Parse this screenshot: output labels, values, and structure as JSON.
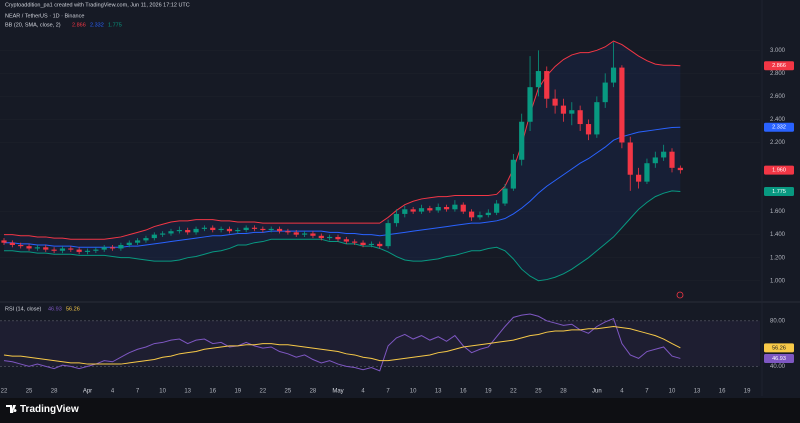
{
  "header": {
    "author_line": "Cryptoaddition_pa1 created with TradingView.com, Jun 11, 2026 17:12 UTC"
  },
  "brand": "TradingView",
  "chart_data": [
    {
      "type": "candlestick",
      "title": "NEAR / TetherUS · 1D · Binance",
      "indicator": "BB (20, SMA, close, 2)",
      "up_color": "#089981",
      "down_color": "#f23645",
      "categories": [
        "22",
        null,
        null,
        "25",
        null,
        null,
        "28",
        null,
        null,
        null,
        "Apr",
        null,
        null,
        "4",
        null,
        null,
        "7",
        null,
        null,
        "10",
        null,
        null,
        "13",
        null,
        null,
        "16",
        null,
        null,
        "19",
        null,
        null,
        "22",
        null,
        null,
        "25",
        null,
        null,
        "28",
        null,
        null,
        "May",
        null,
        null,
        "4",
        null,
        null,
        "7",
        null,
        null,
        "10",
        null,
        null,
        "13",
        null,
        null,
        "16",
        null,
        null,
        "19",
        null,
        null,
        "22",
        null,
        null,
        "25",
        null,
        null,
        "28",
        null,
        null,
        null,
        "Jun",
        null,
        null,
        "4",
        null,
        null,
        "7",
        null,
        null,
        "10",
        null,
        null,
        "13",
        null,
        null,
        "16",
        null,
        null,
        "19",
        null,
        null
      ],
      "candles": {
        "open": [
          1.35,
          1.33,
          1.31,
          1.3,
          1.28,
          1.29,
          1.27,
          1.26,
          1.28,
          1.27,
          1.25,
          1.26,
          1.27,
          1.29,
          1.28,
          1.31,
          1.33,
          1.35,
          1.37,
          1.4,
          1.41,
          1.43,
          1.44,
          1.42,
          1.45,
          1.46,
          1.44,
          1.45,
          1.43,
          1.44,
          1.46,
          1.45,
          1.44,
          1.45,
          1.43,
          1.42,
          1.4,
          1.41,
          1.39,
          1.37,
          1.38,
          1.36,
          1.34,
          1.33,
          1.31,
          1.32,
          1.3,
          1.5,
          1.58,
          1.62,
          1.6,
          1.63,
          1.61,
          1.64,
          1.62,
          1.66,
          1.6,
          1.55,
          1.57,
          1.59,
          1.67,
          1.8,
          2.05,
          2.38,
          2.68,
          2.82,
          2.58,
          2.52,
          2.45,
          2.48,
          2.36,
          2.27,
          2.55,
          2.72,
          2.85,
          2.2,
          1.92,
          1.86,
          2.02,
          2.07,
          2.12,
          1.98,
          null,
          null,
          null,
          null,
          null,
          null,
          null,
          null,
          null,
          null
        ],
        "high": [
          1.37,
          1.35,
          1.33,
          1.32,
          1.31,
          1.31,
          1.29,
          1.3,
          1.3,
          1.29,
          1.28,
          1.29,
          1.31,
          1.31,
          1.33,
          1.35,
          1.37,
          1.39,
          1.42,
          1.43,
          1.45,
          1.47,
          1.46,
          1.47,
          1.48,
          1.48,
          1.47,
          1.47,
          1.46,
          1.48,
          1.48,
          1.47,
          1.47,
          1.47,
          1.45,
          1.44,
          1.43,
          1.43,
          1.41,
          1.4,
          1.4,
          1.38,
          1.36,
          1.35,
          1.34,
          1.34,
          1.53,
          1.62,
          1.65,
          1.64,
          1.66,
          1.65,
          1.67,
          1.66,
          1.7,
          1.68,
          1.62,
          1.6,
          1.62,
          1.7,
          1.84,
          2.1,
          2.45,
          2.95,
          3.0,
          2.86,
          2.66,
          2.58,
          2.55,
          2.52,
          2.4,
          2.6,
          2.8,
          3.07,
          2.87,
          2.25,
          1.98,
          2.06,
          2.12,
          2.18,
          2.15,
          2.0,
          null,
          null,
          null,
          null,
          null,
          null,
          null,
          null,
          null,
          null
        ],
        "low": [
          1.31,
          1.29,
          1.28,
          1.26,
          1.26,
          1.25,
          1.24,
          1.24,
          1.25,
          1.23,
          1.23,
          1.24,
          1.25,
          1.26,
          1.26,
          1.29,
          1.31,
          1.33,
          1.35,
          1.38,
          1.39,
          1.41,
          1.4,
          1.4,
          1.43,
          1.42,
          1.42,
          1.41,
          1.41,
          1.42,
          1.43,
          1.42,
          1.42,
          1.41,
          1.4,
          1.38,
          1.38,
          1.37,
          1.35,
          1.35,
          1.34,
          1.32,
          1.31,
          1.29,
          1.29,
          1.28,
          1.28,
          1.47,
          1.55,
          1.58,
          1.58,
          1.59,
          1.59,
          1.6,
          1.6,
          1.58,
          1.52,
          1.53,
          1.55,
          1.57,
          1.65,
          1.78,
          2.0,
          2.3,
          2.6,
          2.5,
          2.45,
          2.38,
          2.35,
          2.3,
          2.22,
          2.24,
          2.5,
          2.68,
          2.15,
          1.78,
          1.8,
          1.84,
          1.98,
          2.04,
          1.94,
          1.93,
          null,
          null,
          null,
          null,
          null,
          null,
          null,
          null,
          null,
          null
        ],
        "close": [
          1.33,
          1.31,
          1.3,
          1.28,
          1.29,
          1.27,
          1.26,
          1.28,
          1.27,
          1.25,
          1.26,
          1.27,
          1.29,
          1.28,
          1.31,
          1.33,
          1.35,
          1.37,
          1.4,
          1.41,
          1.43,
          1.44,
          1.42,
          1.45,
          1.46,
          1.44,
          1.45,
          1.43,
          1.44,
          1.46,
          1.45,
          1.44,
          1.45,
          1.43,
          1.42,
          1.4,
          1.41,
          1.39,
          1.37,
          1.38,
          1.36,
          1.34,
          1.33,
          1.31,
          1.32,
          1.3,
          1.5,
          1.58,
          1.62,
          1.6,
          1.63,
          1.61,
          1.64,
          1.62,
          1.66,
          1.6,
          1.55,
          1.57,
          1.59,
          1.67,
          1.8,
          2.05,
          2.38,
          2.68,
          2.82,
          2.58,
          2.52,
          2.45,
          2.48,
          2.36,
          2.27,
          2.55,
          2.72,
          2.85,
          2.2,
          1.92,
          1.86,
          2.02,
          2.07,
          2.12,
          1.98,
          1.96,
          null,
          null,
          null,
          null,
          null,
          null,
          null,
          null,
          null,
          null
        ],
        "value_labels": [
          null,
          null,
          null,
          null,
          null,
          null,
          null,
          null,
          null,
          null,
          null,
          null,
          null,
          null,
          null,
          null,
          null,
          null,
          null,
          null,
          null,
          null,
          null,
          null,
          null,
          null,
          null,
          null,
          null,
          null,
          null,
          null,
          null,
          null,
          null,
          null,
          null,
          null,
          null,
          null,
          null,
          null,
          null,
          null,
          null,
          null,
          null,
          null,
          null,
          null,
          null,
          null,
          null,
          null,
          null,
          null,
          null,
          null,
          null,
          null,
          null,
          null,
          null,
          null,
          null,
          null,
          null,
          null,
          null,
          null,
          null,
          null,
          null,
          null,
          null,
          null,
          null,
          null,
          null,
          null,
          null,
          "1.960",
          null,
          null,
          null,
          null,
          null,
          null,
          null,
          null,
          null,
          null
        ]
      },
      "series": [
        {
          "color": "#f23645",
          "values": [
            1.4,
            1.4,
            1.39,
            1.39,
            1.38,
            1.38,
            1.37,
            1.37,
            1.36,
            1.36,
            1.36,
            1.36,
            1.36,
            1.37,
            1.38,
            1.4,
            1.42,
            1.44,
            1.47,
            1.49,
            1.51,
            1.52,
            1.52,
            1.53,
            1.53,
            1.53,
            1.52,
            1.52,
            1.51,
            1.51,
            1.51,
            1.5,
            1.5,
            1.5,
            1.5,
            1.5,
            1.5,
            1.5,
            1.5,
            1.5,
            1.5,
            1.5,
            1.5,
            1.5,
            1.5,
            1.5,
            1.55,
            1.61,
            1.66,
            1.69,
            1.71,
            1.72,
            1.73,
            1.73,
            1.74,
            1.74,
            1.74,
            1.74,
            1.74,
            1.75,
            1.82,
            1.97,
            2.18,
            2.45,
            2.67,
            2.78,
            2.86,
            2.92,
            2.96,
            2.98,
            2.98,
            3.0,
            3.03,
            3.08,
            3.05,
            3.0,
            2.95,
            2.91,
            2.88,
            2.87,
            2.87,
            2.866,
            null,
            null,
            null,
            null,
            null,
            null,
            null,
            null,
            null,
            null
          ]
        },
        {
          "color": "#2962ff",
          "values": [
            1.33,
            1.33,
            1.32,
            1.32,
            1.31,
            1.31,
            1.3,
            1.3,
            1.3,
            1.29,
            1.29,
            1.29,
            1.29,
            1.29,
            1.29,
            1.3,
            1.3,
            1.31,
            1.32,
            1.33,
            1.34,
            1.35,
            1.36,
            1.37,
            1.38,
            1.39,
            1.39,
            1.4,
            1.41,
            1.41,
            1.42,
            1.42,
            1.43,
            1.43,
            1.43,
            1.43,
            1.43,
            1.43,
            1.43,
            1.42,
            1.42,
            1.41,
            1.41,
            1.4,
            1.4,
            1.39,
            1.4,
            1.41,
            1.42,
            1.43,
            1.44,
            1.45,
            1.46,
            1.47,
            1.48,
            1.49,
            1.5,
            1.5,
            1.51,
            1.52,
            1.54,
            1.58,
            1.63,
            1.69,
            1.76,
            1.82,
            1.87,
            1.92,
            1.97,
            2.02,
            2.06,
            2.11,
            2.16,
            2.22,
            2.25,
            2.27,
            2.29,
            2.3,
            2.31,
            2.32,
            2.33,
            2.332,
            null,
            null,
            null,
            null,
            null,
            null,
            null,
            null,
            null,
            null
          ]
        },
        {
          "color": "#089981",
          "values": [
            1.26,
            1.26,
            1.25,
            1.25,
            1.24,
            1.24,
            1.23,
            1.23,
            1.23,
            1.22,
            1.22,
            1.22,
            1.22,
            1.21,
            1.2,
            1.2,
            1.19,
            1.18,
            1.17,
            1.17,
            1.17,
            1.18,
            1.2,
            1.21,
            1.23,
            1.25,
            1.26,
            1.28,
            1.31,
            1.31,
            1.33,
            1.34,
            1.36,
            1.36,
            1.36,
            1.36,
            1.36,
            1.36,
            1.36,
            1.34,
            1.34,
            1.32,
            1.32,
            1.3,
            1.3,
            1.28,
            1.25,
            1.21,
            1.18,
            1.17,
            1.17,
            1.18,
            1.19,
            1.21,
            1.22,
            1.24,
            1.26,
            1.26,
            1.28,
            1.29,
            1.26,
            1.19,
            1.1,
            1.04,
            1.0,
            1.01,
            1.03,
            1.06,
            1.1,
            1.15,
            1.2,
            1.26,
            1.32,
            1.38,
            1.46,
            1.54,
            1.62,
            1.68,
            1.73,
            1.76,
            1.78,
            1.775,
            null,
            null,
            null,
            null,
            null,
            null,
            null,
            null,
            null,
            null
          ]
        }
      ],
      "ylim": [
        0.85,
        3.35
      ],
      "yticks": [
        {
          "value": 1,
          "label": "1.000"
        },
        {
          "value": 1.2,
          "label": "1.200"
        },
        {
          "value": 1.4,
          "label": "1.400"
        },
        {
          "value": 1.6,
          "label": "1.600"
        },
        {
          "value": 2.2,
          "label": "2.200"
        },
        {
          "value": 2.4,
          "label": "2.400"
        },
        {
          "value": 2.6,
          "label": "2.600"
        },
        {
          "value": 2.8,
          "label": "2.800"
        },
        {
          "value": 3,
          "label": "3.000"
        }
      ]
    },
    {
      "type": "line",
      "title": "RSI (14, close)",
      "series": [
        {
          "color": "#7e57c2",
          "values": [
            45,
            44,
            42,
            40,
            42,
            40,
            38,
            41,
            40,
            38,
            40,
            42,
            45,
            44,
            48,
            52,
            55,
            57,
            60,
            61,
            63,
            64,
            60,
            63,
            64,
            60,
            61,
            57,
            58,
            61,
            58,
            56,
            57,
            53,
            51,
            48,
            50,
            46,
            43,
            45,
            42,
            40,
            39,
            37,
            39,
            36,
            58,
            65,
            68,
            64,
            67,
            63,
            66,
            62,
            67,
            58,
            52,
            55,
            57,
            66,
            75,
            83,
            85,
            86,
            84,
            80,
            78,
            76,
            77,
            72,
            69,
            75,
            79,
            82,
            60,
            50,
            47,
            53,
            55,
            57,
            49,
            46.93,
            null,
            null,
            null,
            null,
            null,
            null,
            null,
            null,
            null,
            null
          ]
        },
        {
          "color": "#f7c948",
          "values": [
            50,
            49,
            49,
            48,
            47,
            46,
            45,
            44,
            43,
            43,
            42,
            42,
            42,
            42,
            42,
            43,
            44,
            45,
            46,
            48,
            49,
            51,
            52,
            53,
            55,
            56,
            57,
            58,
            58,
            59,
            59,
            60,
            60,
            59,
            59,
            58,
            57,
            56,
            55,
            54,
            53,
            51,
            50,
            48,
            47,
            45,
            45,
            46,
            47,
            48,
            49,
            50,
            52,
            53,
            55,
            57,
            58,
            59,
            60,
            61,
            62,
            63,
            65,
            67,
            68,
            70,
            71,
            71,
            72,
            72,
            73,
            73,
            74,
            75,
            74,
            73,
            71,
            69,
            67,
            64,
            60,
            56.26,
            null,
            null,
            null,
            null,
            null,
            null,
            null,
            null,
            null,
            null
          ]
        }
      ],
      "ylim": [
        28,
        93
      ],
      "yticks": [
        {
          "value": 80,
          "label": "80.00"
        },
        {
          "value": 40,
          "label": "40.00"
        }
      ]
    }
  ]
}
